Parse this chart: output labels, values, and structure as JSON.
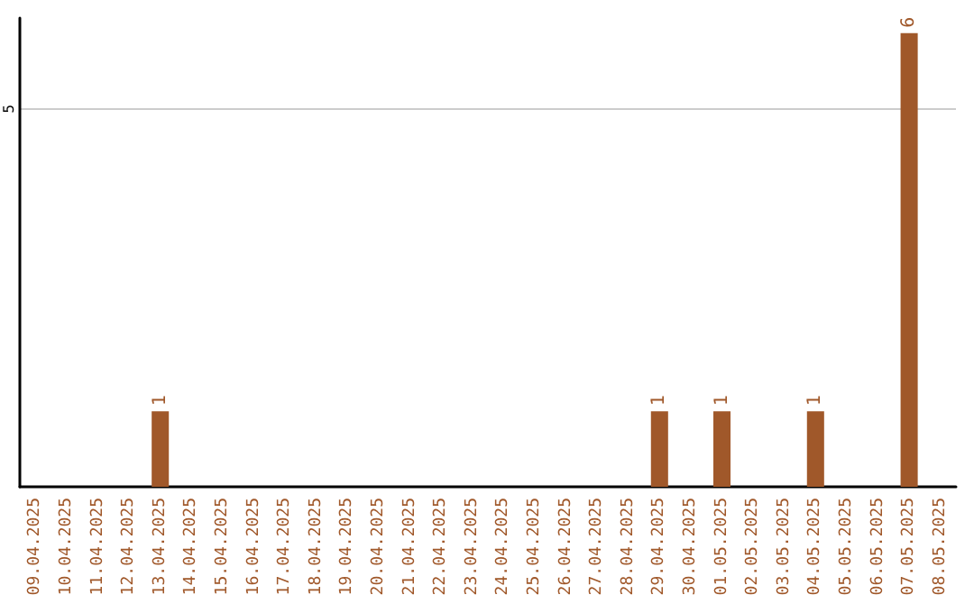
{
  "chart_data": {
    "type": "bar",
    "categories": [
      "09.04.2025",
      "10.04.2025",
      "11.04.2025",
      "12.04.2025",
      "13.04.2025",
      "14.04.2025",
      "15.04.2025",
      "16.04.2025",
      "17.04.2025",
      "18.04.2025",
      "19.04.2025",
      "20.04.2025",
      "21.04.2025",
      "22.04.2025",
      "23.04.2025",
      "24.04.2025",
      "25.04.2025",
      "26.04.2025",
      "27.04.2025",
      "28.04.2025",
      "29.04.2025",
      "30.04.2025",
      "01.05.2025",
      "02.05.2025",
      "03.05.2025",
      "04.05.2025",
      "05.05.2025",
      "06.05.2025",
      "07.05.2025",
      "08.05.2025"
    ],
    "values": [
      0,
      0,
      0,
      0,
      1,
      0,
      0,
      0,
      0,
      0,
      0,
      0,
      0,
      0,
      0,
      0,
      0,
      0,
      0,
      0,
      1,
      0,
      1,
      0,
      0,
      1,
      0,
      0,
      6,
      0
    ],
    "value_labels": [
      null,
      null,
      null,
      null,
      "1",
      null,
      null,
      null,
      null,
      null,
      null,
      null,
      null,
      null,
      null,
      null,
      null,
      null,
      null,
      null,
      "1",
      null,
      "1",
      null,
      null,
      "1",
      null,
      null,
      "6",
      null
    ],
    "color": "#a0582a",
    "ylim": [
      0,
      6.2
    ],
    "yticks": [
      5
    ],
    "grid": "y"
  }
}
